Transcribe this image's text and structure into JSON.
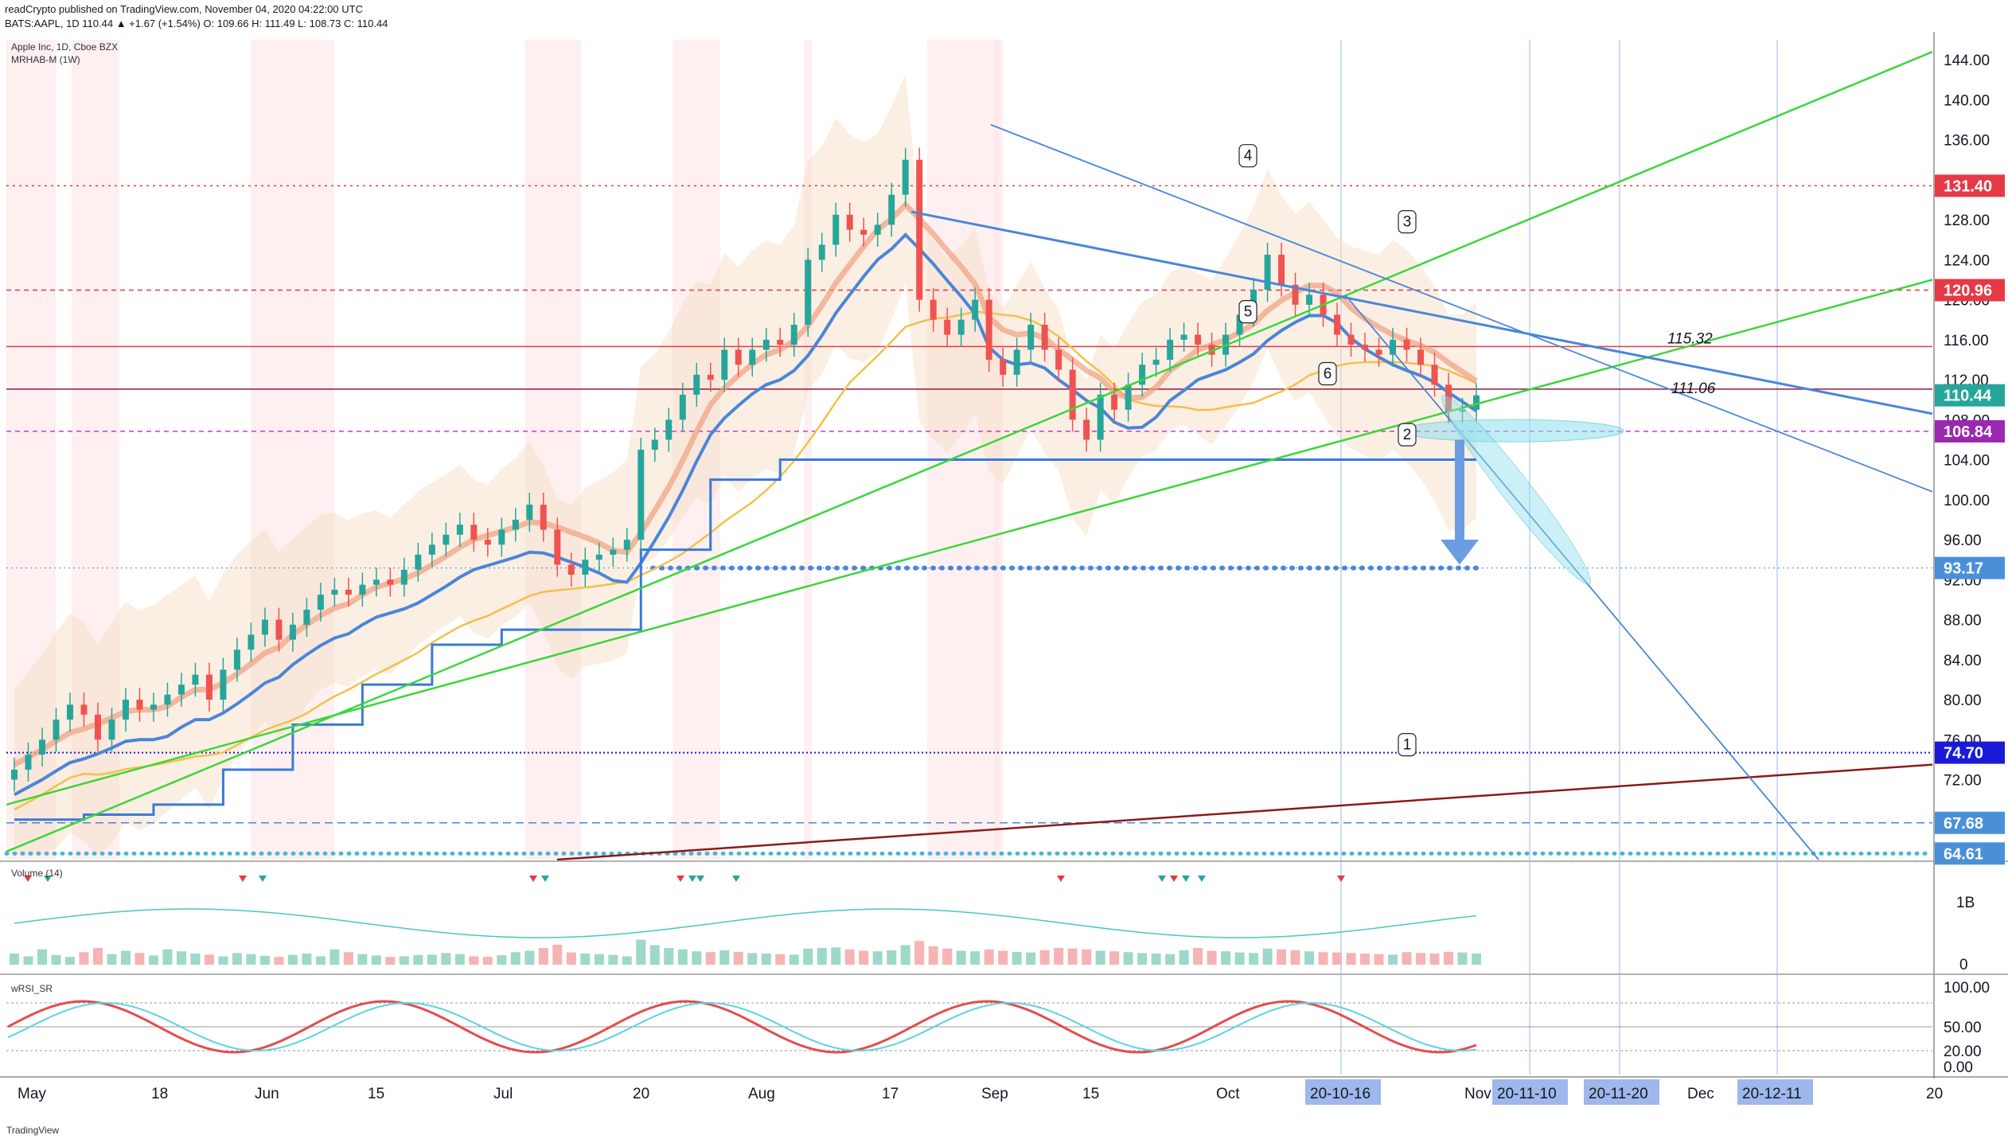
{
  "header": {
    "line1_prefix": "readCrypto published on TradingView.com, November 04, 2020 04:22:00 UTC",
    "line2": "BATS:AAPL, 1D 110.44 ▲ +1.67 (+1.54%) O: 109.66 H: 111.49 L: 108.73 C: 110.44"
  },
  "main_pane": {
    "title": "Apple Inc, 1D, Cboe BZX",
    "indicator": "MRHAB-M (1W)"
  },
  "volume_pane": {
    "title": "Volume (14)",
    "ticks": [
      "1B",
      "0"
    ]
  },
  "rsi_pane": {
    "title": "wRSI_SR",
    "ticks": [
      "100.00",
      "50.00",
      "20.00",
      "0.00"
    ]
  },
  "footer": {
    "brand": "TradingView"
  },
  "colors": {
    "green_line": "#3bd63b",
    "blue_line": "#4a86d8",
    "dark_red": "#8b1a1a",
    "orange_ma": "#f5c04a",
    "price_label_red": "#e63946",
    "price_label_teal": "#26a69a",
    "price_label_purple": "#9c27b0",
    "price_label_navy": "#1a1ad8",
    "price_label_blue": "#4a90d9"
  },
  "chart_data": {
    "type": "candlestick",
    "y_ticks": [
      "144.00",
      "140.00",
      "136.00",
      "128.00",
      "124.00",
      "120.00",
      "116.00",
      "112.00",
      "108.00",
      "104.00",
      "100.00",
      "96.00",
      "92.00",
      "88.00",
      "84.00",
      "80.00",
      "76.00",
      "72.00"
    ],
    "ylim": [
      64,
      146
    ],
    "x_ticks": [
      "May",
      "18",
      "Jun",
      "15",
      "Jul",
      "20",
      "Aug",
      "17",
      "Sep",
      "15",
      "Oct",
      "Nov",
      "Dec",
      "20"
    ],
    "x_tick_highlights": [
      "20-10-16",
      "20-11-10",
      "20-11-20",
      "20-12-11"
    ],
    "price_labels": [
      {
        "value": "131.40",
        "color": "#e63946"
      },
      {
        "value": "120.96",
        "color": "#e63946"
      },
      {
        "value": "110.44",
        "color": "#26a69a"
      },
      {
        "value": "106.84",
        "color": "#9c27b0"
      },
      {
        "value": "93.17",
        "color": "#4a90d9"
      },
      {
        "value": "74.70",
        "color": "#1a1ad8"
      },
      {
        "value": "67.68",
        "color": "#4a90d9"
      },
      {
        "value": "64.61",
        "color": "#4a90d9"
      }
    ],
    "level_texts": [
      "115.32",
      "111.06"
    ],
    "callouts": [
      "1",
      "2",
      "3",
      "4",
      "5",
      "6"
    ],
    "close_series": [
      73.0,
      74.5,
      76.0,
      78.0,
      79.5,
      78.5,
      76.0,
      78.0,
      80.0,
      79.0,
      79.5,
      80.5,
      81.5,
      82.5,
      80.0,
      83.0,
      85.0,
      86.5,
      88.0,
      86.0,
      87.5,
      89.0,
      90.5,
      91.0,
      90.5,
      91.5,
      92.0,
      91.5,
      93.0,
      94.5,
      95.5,
      96.5,
      97.5,
      96.0,
      95.5,
      97.0,
      98.0,
      99.5,
      97.0,
      93.5,
      92.5,
      94.0,
      94.5,
      95.0,
      96.0,
      105.0,
      106.0,
      108.0,
      110.5,
      112.5,
      112.0,
      115.0,
      113.5,
      115.0,
      116.0,
      115.5,
      117.5,
      124.0,
      125.5,
      128.5,
      127.0,
      126.5,
      127.5,
      130.5,
      134.0,
      120.0,
      118.0,
      116.5,
      118.0,
      120.0,
      114.0,
      112.5,
      115.0,
      117.5,
      115.0,
      113.0,
      108.0,
      106.0,
      110.5,
      109.0,
      111.5,
      113.5,
      114.0,
      116.0,
      116.5,
      115.5,
      114.5,
      116.5,
      118.5,
      121.0,
      124.5,
      121.5,
      119.5,
      120.5,
      118.5,
      116.5,
      115.5,
      115.0,
      114.5,
      116.0,
      115.0,
      113.5,
      111.5,
      108.8,
      109.0,
      110.44
    ]
  }
}
